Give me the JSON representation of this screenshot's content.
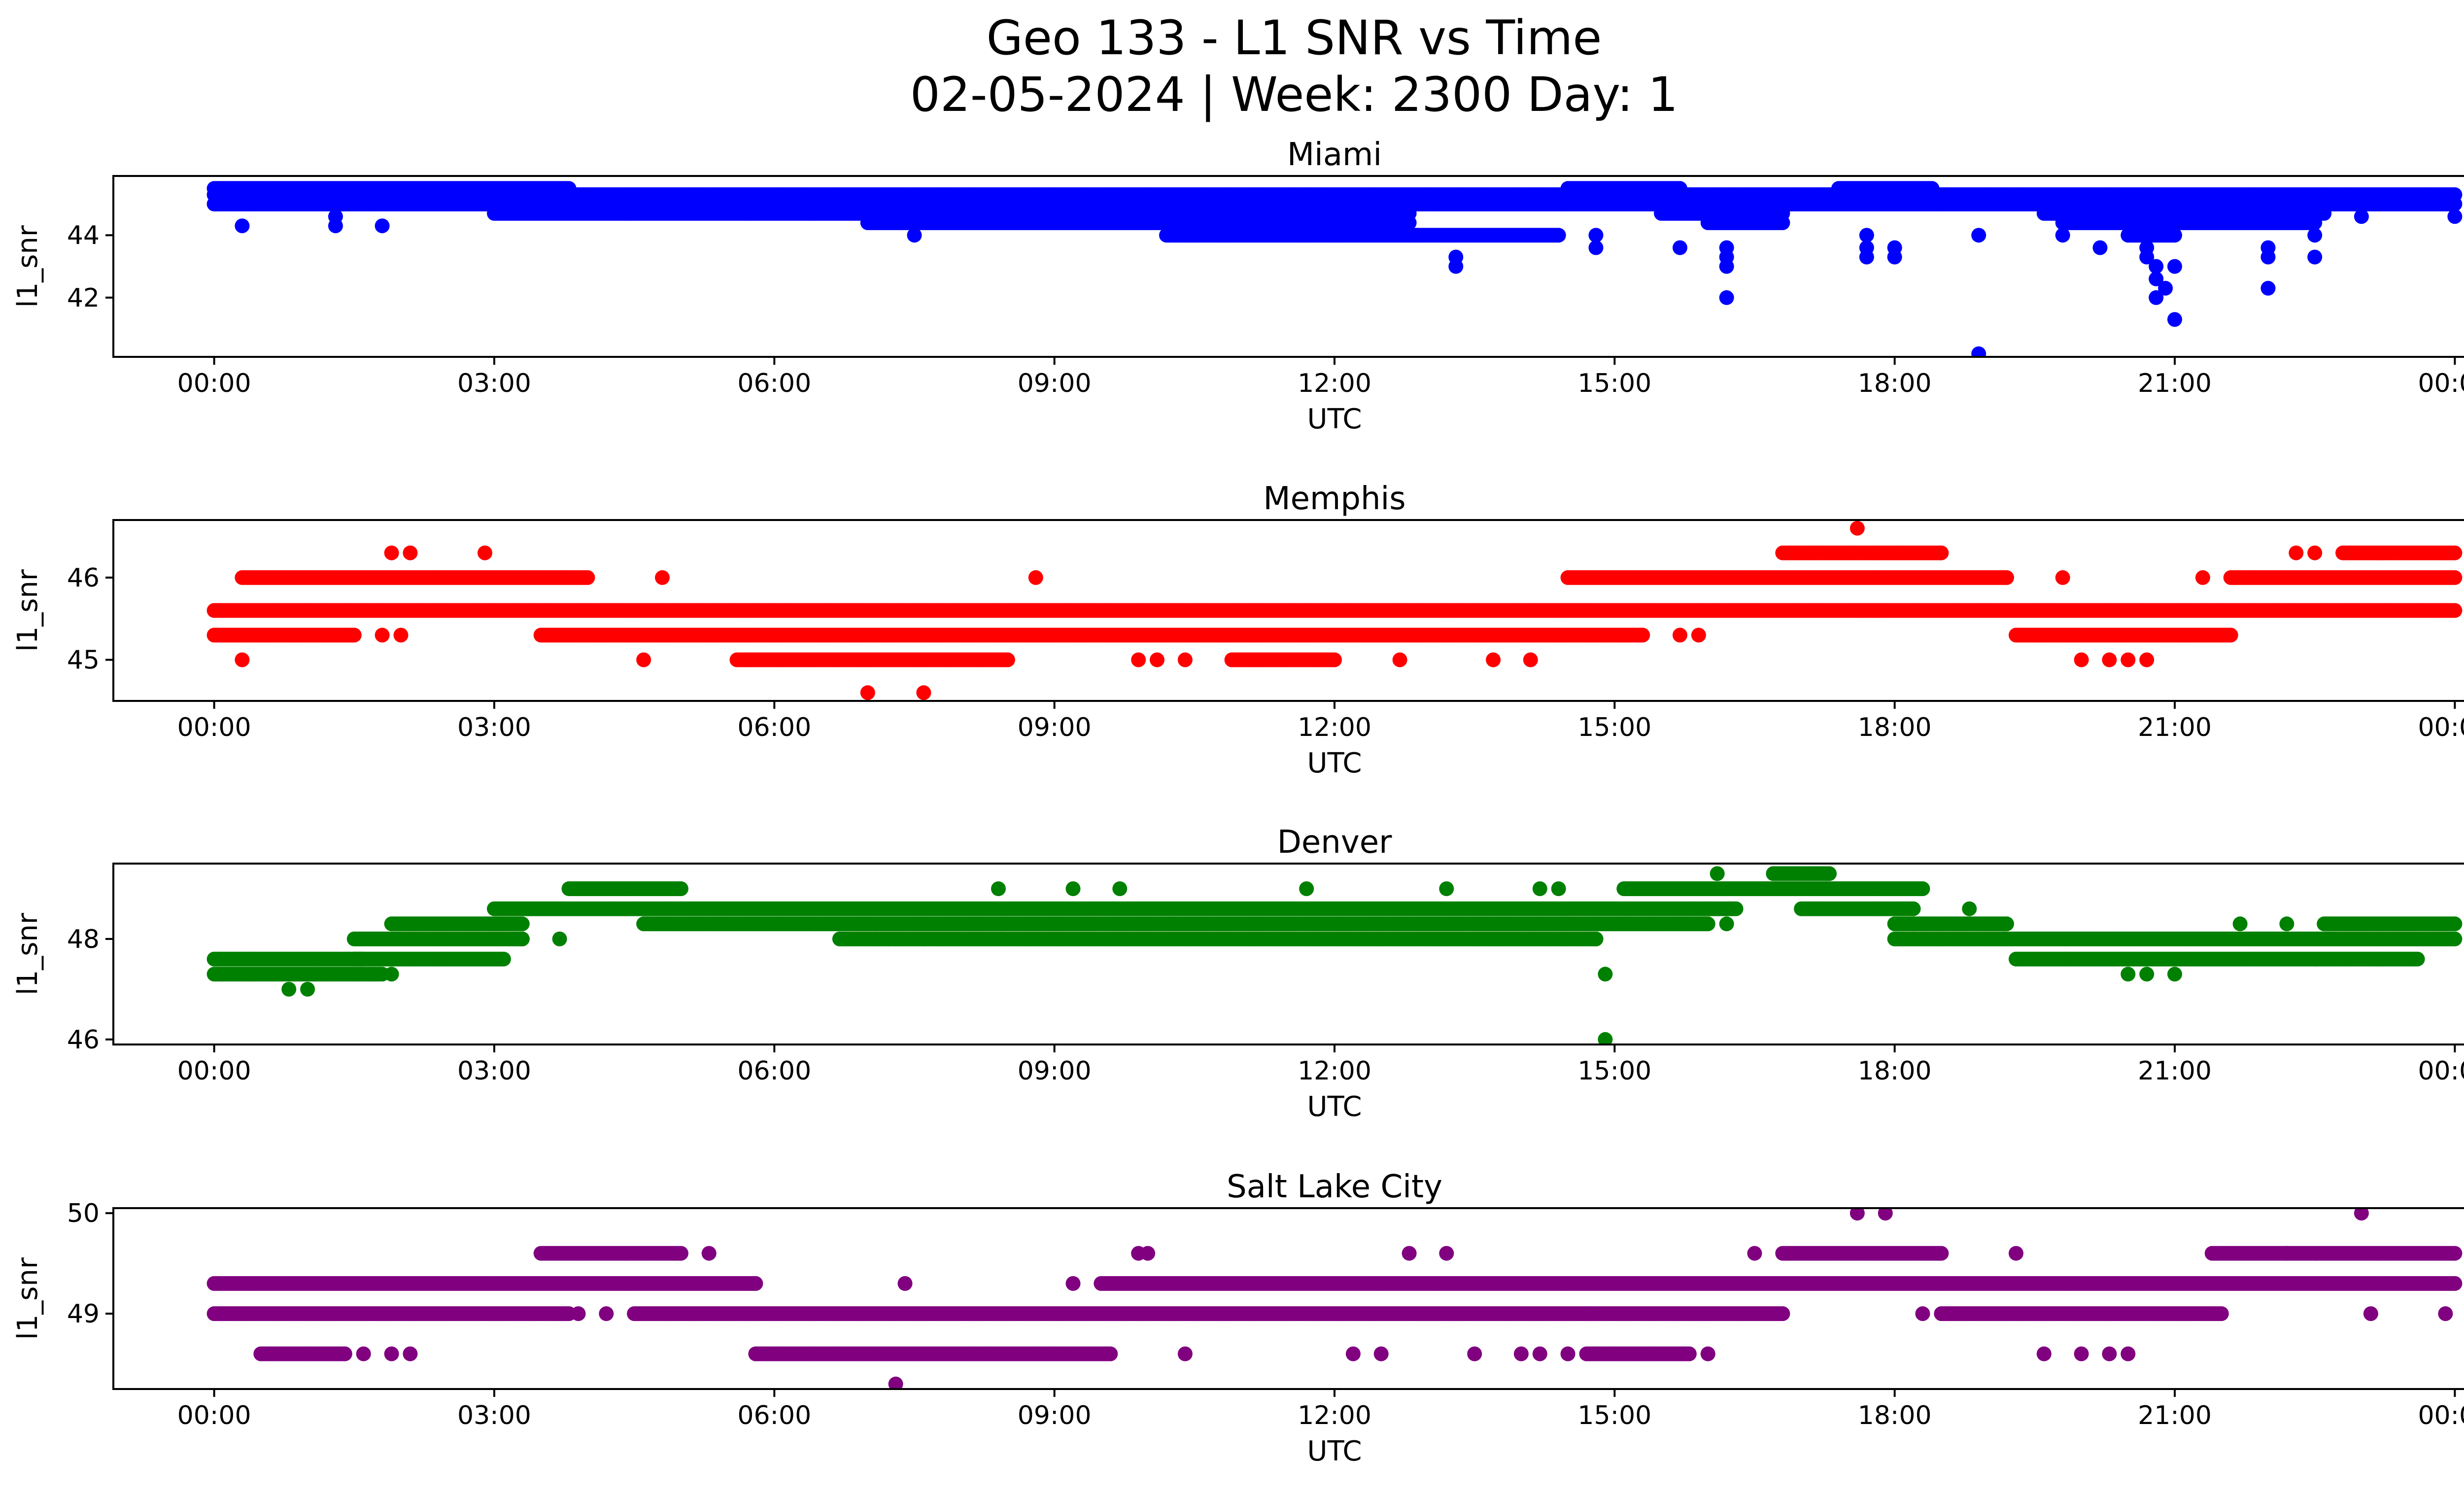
{
  "figure": {
    "title_line1": "Geo 133 - L1 SNR vs Time",
    "title_line2": "02-05-2024 | Week: 2300 Day: 1"
  },
  "chart_data": [
    {
      "type": "scatter",
      "title": "Miami",
      "xlabel": "UTC",
      "ylabel": "l1_snr",
      "color": "#0000ff",
      "x_range_hours": [
        0,
        24
      ],
      "ylim": [
        40.1,
        45.9
      ],
      "yticks": [
        42,
        44
      ],
      "x_ticks": [
        "00:00",
        "03:00",
        "06:00",
        "09:00",
        "12:00",
        "15:00",
        "18:00",
        "21:00",
        "00:00"
      ],
      "bands": [
        {
          "from": 0,
          "to": 24,
          "y": 45.0
        },
        {
          "from": 0,
          "to": 24,
          "y": 45.3
        },
        {
          "from": 0,
          "to": 3.8,
          "y": 45.5
        },
        {
          "from": 14.5,
          "to": 15.7,
          "y": 45.5
        },
        {
          "from": 17.4,
          "to": 18.4,
          "y": 45.5
        },
        {
          "from": 3.0,
          "to": 12.8,
          "y": 44.7
        },
        {
          "from": 15.5,
          "to": 16.8,
          "y": 44.7
        },
        {
          "from": 19.6,
          "to": 22.6,
          "y": 44.7
        },
        {
          "from": 7.0,
          "to": 12.8,
          "y": 44.4
        },
        {
          "from": 16.0,
          "to": 16.8,
          "y": 44.4
        },
        {
          "from": 19.8,
          "to": 22.5,
          "y": 44.4
        },
        {
          "from": 10.2,
          "to": 14.4,
          "y": 44.0
        },
        {
          "from": 20.5,
          "to": 21.0,
          "y": 44.0
        }
      ],
      "outliers": [
        [
          0.3,
          44.3
        ],
        [
          1.3,
          44.3
        ],
        [
          1.3,
          44.6
        ],
        [
          1.8,
          44.3
        ],
        [
          7.5,
          44.0
        ],
        [
          10.3,
          44.0
        ],
        [
          13.3,
          43.3
        ],
        [
          13.3,
          43.0
        ],
        [
          14.8,
          44.0
        ],
        [
          14.8,
          43.6
        ],
        [
          15.7,
          43.6
        ],
        [
          16.2,
          43.6
        ],
        [
          16.2,
          43.0
        ],
        [
          16.2,
          42.0
        ],
        [
          16.2,
          43.3
        ],
        [
          17.7,
          43.6
        ],
        [
          17.7,
          43.3
        ],
        [
          17.7,
          44.0
        ],
        [
          18.0,
          43.6
        ],
        [
          18.0,
          43.3
        ],
        [
          18.9,
          44.0
        ],
        [
          18.9,
          40.2
        ],
        [
          19.8,
          44.0
        ],
        [
          20.2,
          43.6
        ],
        [
          20.7,
          43.6
        ],
        [
          20.7,
          43.3
        ],
        [
          20.8,
          43.0
        ],
        [
          20.8,
          42.6
        ],
        [
          20.8,
          42.0
        ],
        [
          20.9,
          42.3
        ],
        [
          21.0,
          41.3
        ],
        [
          21.0,
          43.0
        ],
        [
          22.0,
          43.6
        ],
        [
          22.0,
          43.3
        ],
        [
          22.0,
          42.3
        ],
        [
          22.5,
          43.3
        ],
        [
          22.5,
          44.0
        ],
        [
          23.0,
          44.6
        ],
        [
          24.0,
          44.6
        ],
        [
          12.0,
          44.6
        ]
      ]
    },
    {
      "type": "scatter",
      "title": "Memphis",
      "xlabel": "UTC",
      "ylabel": "l1_snr",
      "color": "#ff0000",
      "x_range_hours": [
        0,
        24
      ],
      "ylim": [
        44.5,
        46.7
      ],
      "yticks": [
        45,
        46
      ],
      "x_ticks": [
        "00:00",
        "03:00",
        "06:00",
        "09:00",
        "12:00",
        "15:00",
        "18:00",
        "21:00",
        "00:00"
      ],
      "bands": [
        {
          "from": 0,
          "to": 24,
          "y": 45.6
        },
        {
          "from": 0,
          "to": 1.5,
          "y": 45.3
        },
        {
          "from": 3.5,
          "to": 15.3,
          "y": 45.3
        },
        {
          "from": 19.3,
          "to": 21.6,
          "y": 45.3
        },
        {
          "from": 0.3,
          "to": 4.0,
          "y": 46.0
        },
        {
          "from": 14.5,
          "to": 19.2,
          "y": 46.0
        },
        {
          "from": 21.6,
          "to": 24,
          "y": 46.0
        },
        {
          "from": 5.6,
          "to": 8.5,
          "y": 45.0
        },
        {
          "from": 10.9,
          "to": 12.0,
          "y": 45.0
        },
        {
          "from": 16.8,
          "to": 18.5,
          "y": 46.3
        },
        {
          "from": 22.8,
          "to": 24,
          "y": 46.3
        }
      ],
      "outliers": [
        [
          0.3,
          45.0
        ],
        [
          1.4,
          45.3
        ],
        [
          1.8,
          45.3
        ],
        [
          2.0,
          45.3
        ],
        [
          1.9,
          46.3
        ],
        [
          2.1,
          46.3
        ],
        [
          2.9,
          46.3
        ],
        [
          4.6,
          45.0
        ],
        [
          4.8,
          46.0
        ],
        [
          7.0,
          44.6
        ],
        [
          7.6,
          44.6
        ],
        [
          8.8,
          46.0
        ],
        [
          9.9,
          45.0
        ],
        [
          10.1,
          45.0
        ],
        [
          10.4,
          45.0
        ],
        [
          12.7,
          45.0
        ],
        [
          13.7,
          45.0
        ],
        [
          14.1,
          45.0
        ],
        [
          15.7,
          45.3
        ],
        [
          15.9,
          45.3
        ],
        [
          17.6,
          46.6
        ],
        [
          17.6,
          45.6
        ],
        [
          17.8,
          45.6
        ],
        [
          19.8,
          46.0
        ],
        [
          20.0,
          45.0
        ],
        [
          20.3,
          45.0
        ],
        [
          20.5,
          45.0
        ],
        [
          20.7,
          45.0
        ],
        [
          21.3,
          46.0
        ],
        [
          22.3,
          46.3
        ],
        [
          22.5,
          46.3
        ]
      ]
    },
    {
      "type": "scatter",
      "title": "Denver",
      "xlabel": "UTC",
      "ylabel": "l1_snr",
      "color": "#008000",
      "x_range_hours": [
        0,
        24
      ],
      "ylim": [
        45.9,
        49.5
      ],
      "yticks": [
        46,
        48
      ],
      "x_ticks": [
        "00:00",
        "03:00",
        "06:00",
        "09:00",
        "12:00",
        "15:00",
        "18:00",
        "21:00",
        "00:00"
      ],
      "bands": [
        {
          "from": 0,
          "to": 1.6,
          "y": 47.6
        },
        {
          "from": 0,
          "to": 1.8,
          "y": 47.3
        },
        {
          "from": 1.5,
          "to": 3.1,
          "y": 47.6
        },
        {
          "from": 1.5,
          "to": 3.3,
          "y": 48.0
        },
        {
          "from": 1.9,
          "to": 3.3,
          "y": 48.3
        },
        {
          "from": 3.0,
          "to": 16.3,
          "y": 48.6
        },
        {
          "from": 4.6,
          "to": 16.0,
          "y": 48.3
        },
        {
          "from": 6.7,
          "to": 14.8,
          "y": 48.0
        },
        {
          "from": 15.1,
          "to": 18.3,
          "y": 49.0
        },
        {
          "from": 16.7,
          "to": 17.3,
          "y": 49.3
        },
        {
          "from": 17.0,
          "to": 18.2,
          "y": 48.6
        },
        {
          "from": 18.0,
          "to": 19.2,
          "y": 48.3
        },
        {
          "from": 18.0,
          "to": 24,
          "y": 48.0
        },
        {
          "from": 19.3,
          "to": 23.6,
          "y": 47.6
        },
        {
          "from": 22.6,
          "to": 24,
          "y": 48.3
        },
        {
          "from": 3.8,
          "to": 5.0,
          "y": 49.0
        }
      ],
      "outliers": [
        [
          0.8,
          47.0
        ],
        [
          1.0,
          47.0
        ],
        [
          1.9,
          47.3
        ],
        [
          3.3,
          48.0
        ],
        [
          3.7,
          48.0
        ],
        [
          8.4,
          49.0
        ],
        [
          9.2,
          49.0
        ],
        [
          9.7,
          49.0
        ],
        [
          11.7,
          49.0
        ],
        [
          13.2,
          49.0
        ],
        [
          13.5,
          48.0
        ],
        [
          13.7,
          48.0
        ],
        [
          14.2,
          49.0
        ],
        [
          14.4,
          49.0
        ],
        [
          14.8,
          48.0
        ],
        [
          14.9,
          47.3
        ],
        [
          14.9,
          46.0
        ],
        [
          16.1,
          49.3
        ],
        [
          16.2,
          48.3
        ],
        [
          18.2,
          48.3
        ],
        [
          18.8,
          48.6
        ],
        [
          20.5,
          47.3
        ],
        [
          20.7,
          47.3
        ],
        [
          21.0,
          47.3
        ],
        [
          21.7,
          48.3
        ],
        [
          22.2,
          48.3
        ],
        [
          7.3,
          48.0
        ],
        [
          7.6,
          48.0
        ],
        [
          8.7,
          48.0
        ]
      ]
    },
    {
      "type": "scatter",
      "title": "Salt Lake City",
      "xlabel": "UTC",
      "ylabel": "l1_snr",
      "color": "#800080",
      "x_range_hours": [
        0,
        24
      ],
      "ylim": [
        48.25,
        50.05
      ],
      "yticks": [
        49,
        50
      ],
      "x_ticks": [
        "00:00",
        "03:00",
        "06:00",
        "09:00",
        "12:00",
        "15:00",
        "18:00",
        "21:00",
        "00:00"
      ],
      "bands": [
        {
          "from": 0,
          "to": 5.8,
          "y": 49.3
        },
        {
          "from": 9.5,
          "to": 24,
          "y": 49.3
        },
        {
          "from": 0,
          "to": 3.8,
          "y": 49.0
        },
        {
          "from": 4.5,
          "to": 16.8,
          "y": 49.0
        },
        {
          "from": 18.5,
          "to": 21.5,
          "y": 49.0
        },
        {
          "from": 3.5,
          "to": 5.0,
          "y": 49.6
        },
        {
          "from": 16.8,
          "to": 18.5,
          "y": 49.6
        },
        {
          "from": 21.4,
          "to": 24,
          "y": 49.6
        },
        {
          "from": 5.8,
          "to": 9.6,
          "y": 48.6
        },
        {
          "from": 14.7,
          "to": 15.8,
          "y": 48.6
        },
        {
          "from": 0.5,
          "to": 1.4,
          "y": 48.6
        }
      ],
      "outliers": [
        [
          7.3,
          48.3
        ],
        [
          7.4,
          49.3
        ],
        [
          9.2,
          49.3
        ],
        [
          9.9,
          49.6
        ],
        [
          10.0,
          49.6
        ],
        [
          10.4,
          48.6
        ],
        [
          12.2,
          48.6
        ],
        [
          12.5,
          48.6
        ],
        [
          12.8,
          49.6
        ],
        [
          13.2,
          49.6
        ],
        [
          13.5,
          48.6
        ],
        [
          14.0,
          48.6
        ],
        [
          14.2,
          48.6
        ],
        [
          14.5,
          48.6
        ],
        [
          16.0,
          48.6
        ],
        [
          16.5,
          49.6
        ],
        [
          17.6,
          50.0
        ],
        [
          17.9,
          50.0
        ],
        [
          18.3,
          49.0
        ],
        [
          19.3,
          49.6
        ],
        [
          19.6,
          48.6
        ],
        [
          20.0,
          48.6
        ],
        [
          20.3,
          48.6
        ],
        [
          20.5,
          48.6
        ],
        [
          22.2,
          49.6
        ],
        [
          23.0,
          50.0
        ],
        [
          23.1,
          49.0
        ],
        [
          23.9,
          49.0
        ],
        [
          1.6,
          48.6
        ],
        [
          1.9,
          48.6
        ],
        [
          2.1,
          48.6
        ],
        [
          3.9,
          49.0
        ],
        [
          4.2,
          49.0
        ],
        [
          5.3,
          49.6
        ],
        [
          14.7,
          49.0
        ]
      ]
    }
  ]
}
